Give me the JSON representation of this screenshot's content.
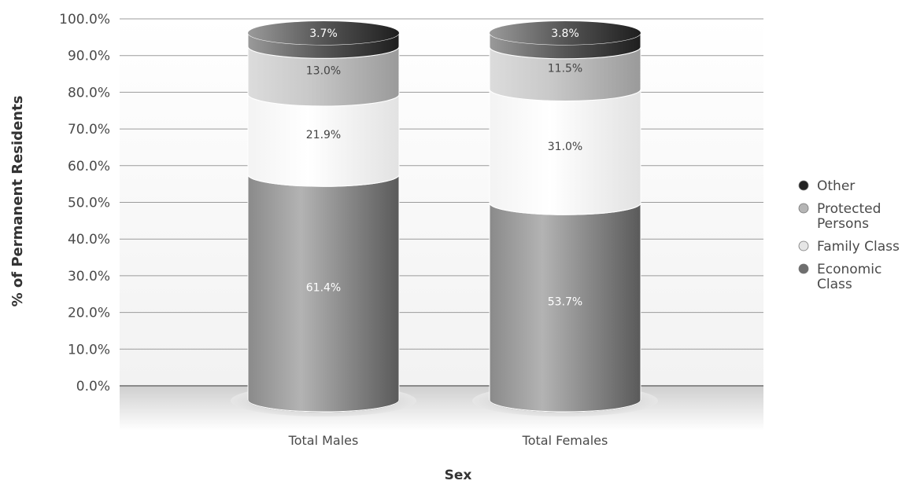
{
  "chart_data": {
    "type": "bar",
    "stacked": true,
    "style": "3d-cylinder",
    "categories": [
      "Total Males",
      "Total Females"
    ],
    "series": [
      {
        "name": "Economic Class",
        "values": [
          61.4,
          53.7
        ],
        "labels": [
          "61.4%",
          "53.7%"
        ],
        "color": "#8c8c8c"
      },
      {
        "name": "Family Class",
        "values": [
          21.9,
          31.0
        ],
        "labels": [
          "21.9%",
          "31.0%"
        ],
        "color": "#efefef"
      },
      {
        "name": "Protected Persons",
        "values": [
          13.0,
          11.5
        ],
        "labels": [
          "13.0%",
          "11.5%"
        ],
        "color": "#bdbdbd"
      },
      {
        "name": "Other",
        "values": [
          3.7,
          3.8
        ],
        "labels": [
          "3.7%",
          "3.8%"
        ],
        "color": "#333333"
      }
    ],
    "legend_order": [
      "Other",
      "Protected Persons",
      "Family Class",
      "Economic Class"
    ],
    "legend_lines": {
      "Other": [
        "Other"
      ],
      "Protected Persons": [
        "Protected",
        "Persons"
      ],
      "Family Class": [
        "Family Class"
      ],
      "Economic Class": [
        "Economic",
        "Class"
      ]
    },
    "legend_position": "right",
    "y_ticks": [
      "0.0%",
      "10.0%",
      "20.0%",
      "30.0%",
      "40.0%",
      "50.0%",
      "60.0%",
      "70.0%",
      "80.0%",
      "90.0%",
      "100.0%"
    ],
    "ylim": [
      0,
      100
    ],
    "xlabel": "Sex",
    "ylabel": "% of Permanent Residents",
    "grid": true
  }
}
